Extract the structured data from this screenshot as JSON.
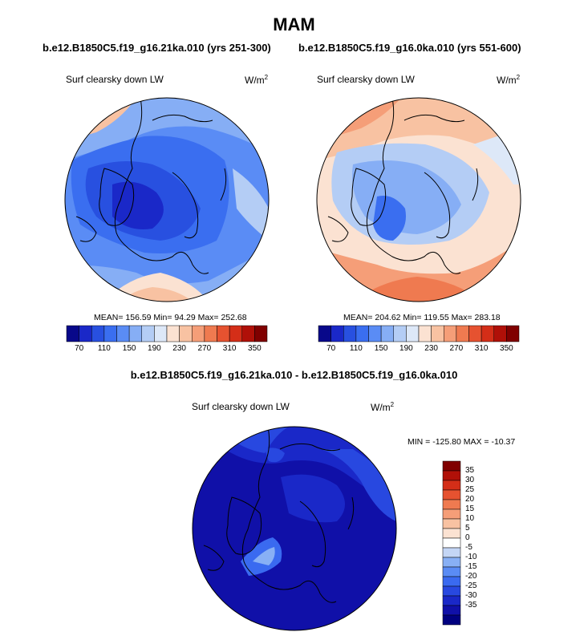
{
  "page": {
    "season": "MAM",
    "diff_title": "b.e12.B1850C5.f19_g16.21ka.010 - b.e12.B1850C5.f19_g16.0ka.010"
  },
  "left_map": {
    "case_title": "b.e12.B1850C5.f19_g16.21ka.010 (yrs 251-300)",
    "variable": "Surf clearsky down LW",
    "units_base": "W/m",
    "units_exp": "2",
    "stats": "MEAN= 156.59  Min=  94.29  Max= 252.68"
  },
  "right_map": {
    "case_title": "b.e12.B1850C5.f19_g16.0ka.010 (yrs 551-600)",
    "variable": "Surf clearsky down LW",
    "units_base": "W/m",
    "units_exp": "2",
    "stats": "MEAN= 204.62  Min= 119.55  Max= 283.18"
  },
  "diff_map": {
    "variable": "Surf clearsky down LW",
    "units_base": "W/m",
    "units_exp": "2",
    "stats": "MIN = -125.80 MAX = -10.37"
  },
  "abs_colorbar": {
    "colors": [
      "#08088a",
      "#1a28c8",
      "#2850e0",
      "#3a6ef0",
      "#5a8cf5",
      "#86aef5",
      "#b4cdf5",
      "#dde8f8",
      "#fbe2d2",
      "#f8c2a2",
      "#f59e78",
      "#ef7a50",
      "#e65230",
      "#d42e18",
      "#b01008",
      "#800000"
    ],
    "tick_labels": [
      "70",
      "110",
      "150",
      "190",
      "230",
      "270",
      "310",
      "350"
    ]
  },
  "diff_colorbar": {
    "colors": [
      "#000080",
      "#1010a8",
      "#1a28c8",
      "#2848e0",
      "#3a6af0",
      "#5a8cf5",
      "#88b0f5",
      "#c4d6f5",
      "#ffffff",
      "#fbe2d2",
      "#f8c2a2",
      "#f59e78",
      "#ef7a50",
      "#e65230",
      "#d42e18",
      "#b01008",
      "#800000"
    ],
    "tick_labels": [
      "35",
      "30",
      "25",
      "20",
      "15",
      "10",
      "5",
      "0",
      "-5",
      "-10",
      "-15",
      "-20",
      "-25",
      "-30",
      "-35"
    ]
  }
}
